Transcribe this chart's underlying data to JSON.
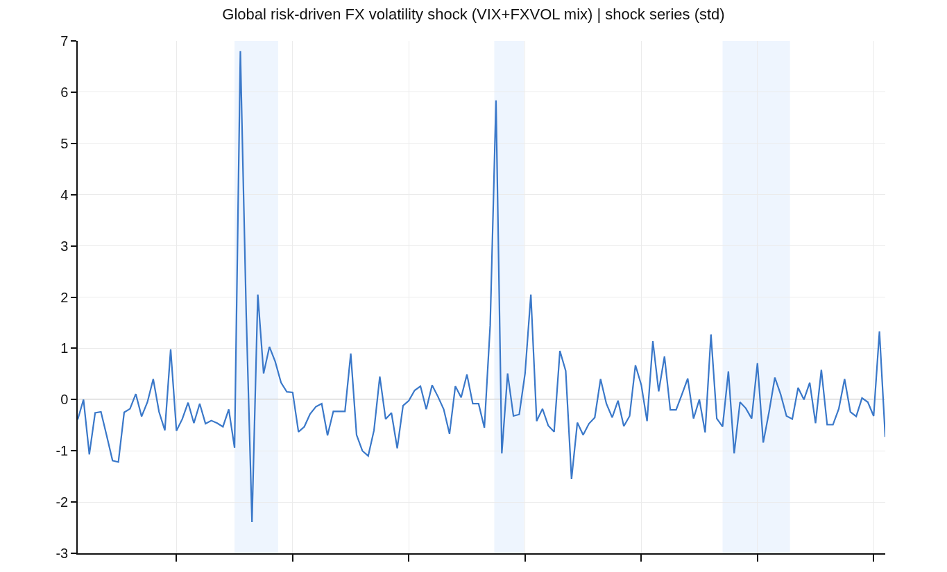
{
  "chart_data": {
    "type": "line",
    "title": "Global risk-driven FX volatility shock (VIX+FXVOL mix) | shock series (std)",
    "categories": [
      null,
      null,
      null,
      null,
      null,
      null,
      null,
      null,
      null,
      null,
      null,
      null,
      null,
      null,
      null,
      null,
      null,
      null,
      null,
      null,
      null,
      null,
      null,
      null,
      null,
      null,
      null,
      null,
      null,
      null,
      null,
      null,
      null,
      null,
      null,
      null,
      null,
      null,
      null,
      null,
      null,
      null,
      null,
      null,
      null,
      null,
      null,
      null,
      null,
      null,
      null,
      null,
      null,
      null,
      null,
      null,
      null,
      null,
      null,
      null,
      null,
      null,
      null,
      null,
      null,
      null,
      null,
      null,
      null,
      null,
      null,
      null,
      null,
      null,
      null,
      null,
      null,
      null,
      null,
      null,
      null,
      null,
      null,
      null,
      null,
      null,
      null,
      null,
      null,
      null,
      null,
      null,
      null,
      null,
      null,
      null,
      null,
      null,
      null,
      null,
      null,
      null,
      null,
      null,
      null,
      null,
      null,
      null,
      null,
      null,
      null,
      null,
      null,
      null,
      null,
      null,
      null,
      null,
      null,
      null,
      null,
      null,
      null,
      null,
      null,
      null,
      null,
      null,
      null,
      null,
      null,
      null,
      null,
      null,
      null,
      null,
      null,
      null,
      null,
      null
    ],
    "series": [
      {
        "color": "#3a78c9",
        "values": [
          -0.39,
          0.0,
          -1.07,
          -0.26,
          -0.24,
          -0.71,
          -1.19,
          -1.22,
          -0.25,
          -0.18,
          0.11,
          -0.33,
          -0.05,
          0.4,
          -0.24,
          -0.6,
          0.98,
          -0.61,
          -0.38,
          -0.06,
          -0.46,
          -0.08,
          -0.47,
          -0.41,
          -0.46,
          -0.53,
          -0.19,
          -0.94,
          6.8,
          1.7,
          -2.39,
          2.05,
          0.51,
          1.03,
          0.74,
          0.33,
          0.15,
          0.14,
          -0.63,
          -0.53,
          -0.28,
          -0.14,
          -0.08,
          -0.7,
          -0.23,
          -0.23,
          -0.23,
          0.9,
          -0.69,
          -1.0,
          -1.1,
          -0.6,
          0.45,
          -0.38,
          -0.26,
          -0.95,
          -0.12,
          -0.02,
          0.18,
          0.26,
          -0.19,
          0.28,
          0.06,
          -0.19,
          -0.67,
          0.26,
          0.04,
          0.49,
          -0.08,
          -0.08,
          -0.55,
          1.45,
          5.84,
          -1.05,
          0.51,
          -0.32,
          -0.29,
          0.51,
          2.05,
          -0.42,
          -0.18,
          -0.51,
          -0.63,
          0.95,
          0.56,
          -1.55,
          -0.45,
          -0.69,
          -0.47,
          -0.35,
          0.4,
          -0.08,
          -0.35,
          -0.02,
          -0.52,
          -0.32,
          0.67,
          0.29,
          -0.42,
          1.14,
          0.16,
          0.84,
          -0.2,
          -0.2,
          0.1,
          0.41,
          -0.37,
          0.0,
          -0.64,
          1.27,
          -0.37,
          -0.53,
          0.55,
          -1.05,
          -0.05,
          -0.17,
          -0.37,
          0.71,
          -0.84,
          -0.24,
          0.43,
          0.1,
          -0.32,
          -0.38,
          0.23,
          0.0,
          0.33,
          -0.46,
          0.58,
          -0.49,
          -0.49,
          -0.18,
          0.4,
          -0.24,
          -0.33,
          0.03,
          -0.05,
          -0.32,
          1.33,
          -0.73
        ]
      }
    ],
    "ylim": [
      -3,
      7
    ],
    "yticks": [
      -3,
      -2,
      -1,
      0,
      1,
      2,
      3,
      4,
      5,
      6,
      7
    ],
    "ref_lines": [
      {
        "axis": "y",
        "value": 0,
        "color": "#333333"
      }
    ],
    "grid": true,
    "tick_labels": "y",
    "line_style": "solid",
    "marker": "none"
  }
}
